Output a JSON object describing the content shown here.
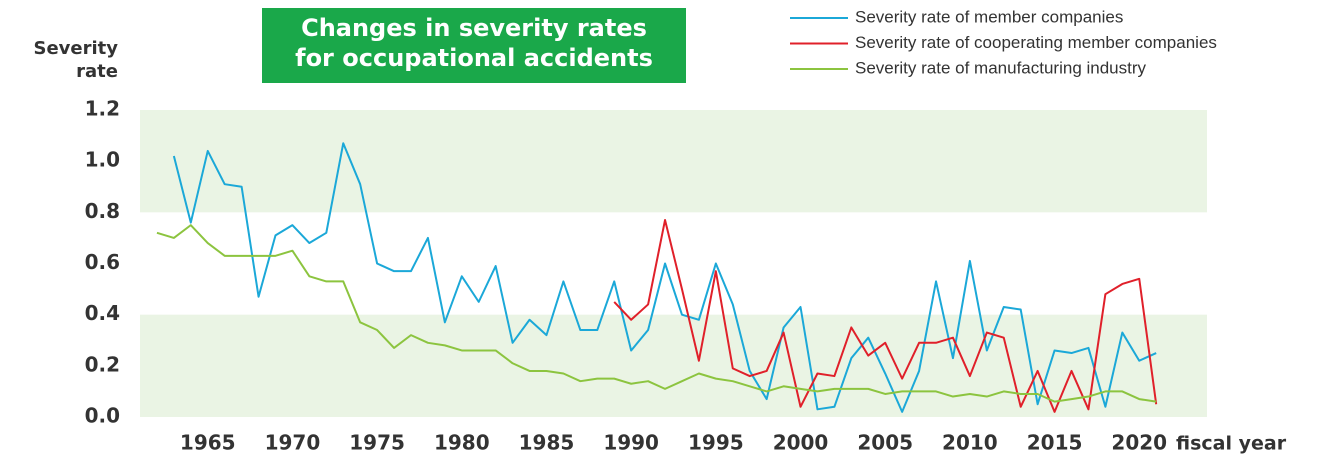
{
  "chart_data": {
    "type": "line",
    "title": [
      "Changes in severity rates",
      "for occupational accidents"
    ],
    "ylabel": [
      "Severity",
      "rate"
    ],
    "xlabel": "fiscal year",
    "x": [
      1962,
      1963,
      1964,
      1965,
      1966,
      1967,
      1968,
      1969,
      1970,
      1971,
      1972,
      1973,
      1974,
      1975,
      1976,
      1977,
      1978,
      1979,
      1980,
      1981,
      1982,
      1983,
      1984,
      1985,
      1986,
      1987,
      1988,
      1989,
      1990,
      1991,
      1992,
      1993,
      1994,
      1995,
      1996,
      1997,
      1998,
      1999,
      2000,
      2001,
      2002,
      2003,
      2004,
      2005,
      2006,
      2007,
      2008,
      2009,
      2010,
      2011,
      2012,
      2013,
      2014,
      2015,
      2016,
      2017,
      2018,
      2019,
      2020,
      2021
    ],
    "series": [
      {
        "name": "Severity rate of member companies",
        "color": "#1ba8d8",
        "values": [
          null,
          1.02,
          0.76,
          1.04,
          0.91,
          0.9,
          0.47,
          0.71,
          0.75,
          0.68,
          0.72,
          1.07,
          0.91,
          0.6,
          0.57,
          0.57,
          0.7,
          0.37,
          0.55,
          0.45,
          0.59,
          0.29,
          0.38,
          0.32,
          0.53,
          0.34,
          0.34,
          0.53,
          0.26,
          0.34,
          0.6,
          0.4,
          0.38,
          0.6,
          0.44,
          0.18,
          0.07,
          0.35,
          0.43,
          0.03,
          0.04,
          0.23,
          0.31,
          0.17,
          0.02,
          0.18,
          0.53,
          0.23,
          0.61,
          0.26,
          0.43,
          0.42,
          0.05,
          0.26,
          0.25,
          0.27,
          0.04,
          0.33,
          0.22,
          0.25
        ]
      },
      {
        "name": "Severity rate of cooperating member companies",
        "color": "#e0202a",
        "values": [
          null,
          null,
          null,
          null,
          null,
          null,
          null,
          null,
          null,
          null,
          null,
          null,
          null,
          null,
          null,
          null,
          null,
          null,
          null,
          null,
          null,
          null,
          null,
          null,
          null,
          null,
          null,
          0.45,
          0.38,
          0.44,
          0.77,
          0.5,
          0.22,
          0.57,
          0.19,
          0.16,
          0.18,
          0.33,
          0.04,
          0.17,
          0.16,
          0.35,
          0.24,
          0.29,
          0.15,
          0.29,
          0.29,
          0.31,
          0.16,
          0.33,
          0.31,
          0.04,
          0.18,
          0.02,
          0.18,
          0.03,
          0.48,
          0.52,
          0.54,
          0.05
        ]
      },
      {
        "name": "Severity rate of manufacturing industry",
        "color": "#8cc43f",
        "values": [
          0.72,
          0.7,
          0.75,
          0.68,
          0.63,
          0.63,
          0.63,
          0.63,
          0.65,
          0.55,
          0.53,
          0.53,
          0.37,
          0.34,
          0.27,
          0.32,
          0.29,
          0.28,
          0.26,
          0.26,
          0.26,
          0.21,
          0.18,
          0.18,
          0.17,
          0.14,
          0.15,
          0.15,
          0.13,
          0.14,
          0.11,
          0.14,
          0.17,
          0.15,
          0.14,
          0.12,
          0.1,
          0.12,
          0.11,
          0.1,
          0.11,
          0.11,
          0.11,
          0.09,
          0.1,
          0.1,
          0.1,
          0.08,
          0.09,
          0.08,
          0.1,
          0.09,
          0.09,
          0.06,
          0.07,
          0.08,
          0.1,
          0.1,
          0.07,
          0.06
        ]
      }
    ],
    "xlim": [
      1961,
      2024
    ],
    "xticks": [
      1965,
      1970,
      1975,
      1980,
      1985,
      1990,
      1995,
      2000,
      2005,
      2010,
      2015,
      2020
    ],
    "ylim": [
      0,
      1.2
    ],
    "yticks": [
      {
        "value": 0,
        "label": "0.0"
      },
      0.2,
      0.4,
      0.6,
      0.8,
      {
        "value": 1,
        "label": "1.0"
      },
      1.2
    ],
    "bands": [
      [
        0,
        0.4
      ],
      [
        0.8,
        1.2
      ]
    ],
    "band_color": "#eaf4e4",
    "title_box_color": "#1aa84a",
    "legend": "upper right"
  }
}
